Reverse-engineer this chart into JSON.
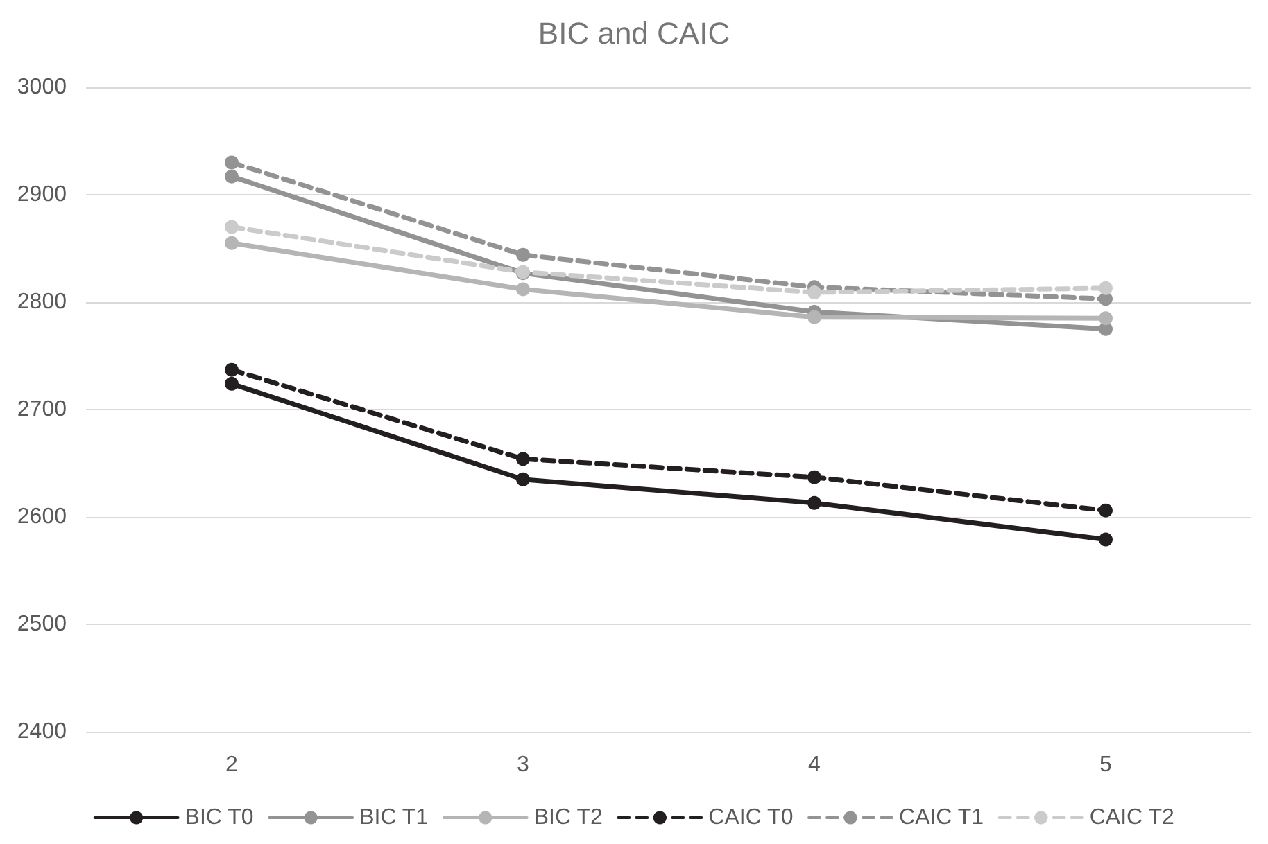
{
  "chart_data": {
    "type": "line",
    "title": "BIC and CAIC",
    "categories": [
      "2",
      "3",
      "4",
      "5"
    ],
    "series": [
      {
        "name": "BIC T0",
        "color": "#231f20",
        "line_style": "solid",
        "values": [
          2724,
          2635,
          2613,
          2579
        ]
      },
      {
        "name": "BIC T1",
        "color": "#939393",
        "line_style": "solid",
        "values": [
          2917,
          2827,
          2791,
          2775
        ]
      },
      {
        "name": "BIC T2",
        "color": "#b5b5b5",
        "line_style": "solid",
        "values": [
          2855,
          2812,
          2786,
          2785
        ]
      },
      {
        "name": "CAIC T0",
        "color": "#231f20",
        "line_style": "dashed",
        "values": [
          2737,
          2654,
          2637,
          2606
        ]
      },
      {
        "name": "CAIC T1",
        "color": "#939393",
        "line_style": "dashed",
        "values": [
          2930,
          2844,
          2814,
          2803
        ]
      },
      {
        "name": "CAIC T2",
        "color": "#cbcbcb",
        "line_style": "dashed",
        "values": [
          2870,
          2828,
          2809,
          2813
        ]
      }
    ],
    "ylim": [
      2400,
      3000
    ],
    "yticks": [
      2400,
      2500,
      2600,
      2700,
      2800,
      2900,
      3000
    ],
    "grid": "y",
    "legend": "bottom",
    "marker": "circle"
  }
}
